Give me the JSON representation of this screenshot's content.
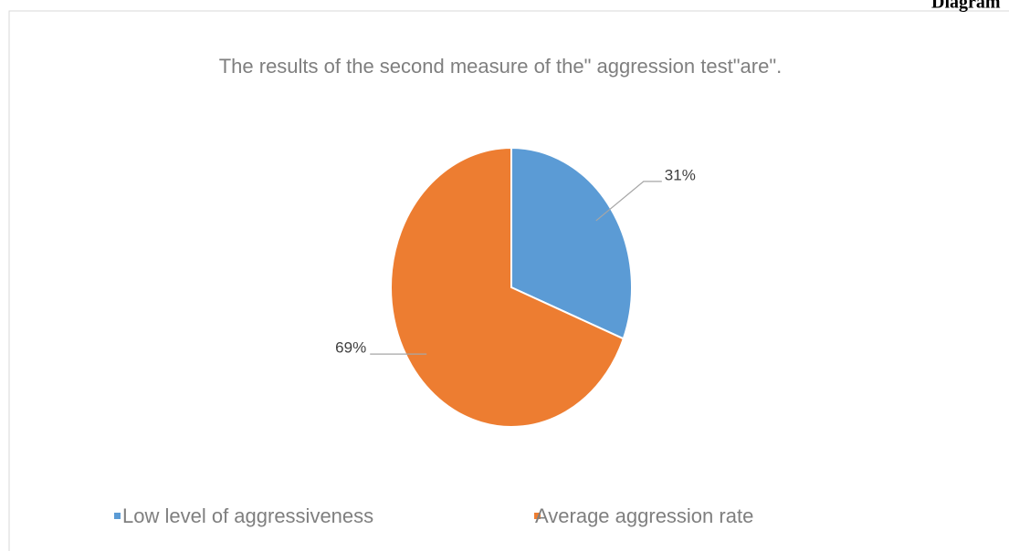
{
  "page_label": "Diagram",
  "chart_data": {
    "type": "pie",
    "title": "The results of the second measure of the\" aggression test\"are\".",
    "categories": [
      "Low level of aggressiveness",
      "Average aggression rate"
    ],
    "values": [
      31,
      69
    ],
    "value_labels": [
      "31%",
      "69%"
    ],
    "colors": [
      "#5b9bd5",
      "#ed7d31"
    ]
  }
}
